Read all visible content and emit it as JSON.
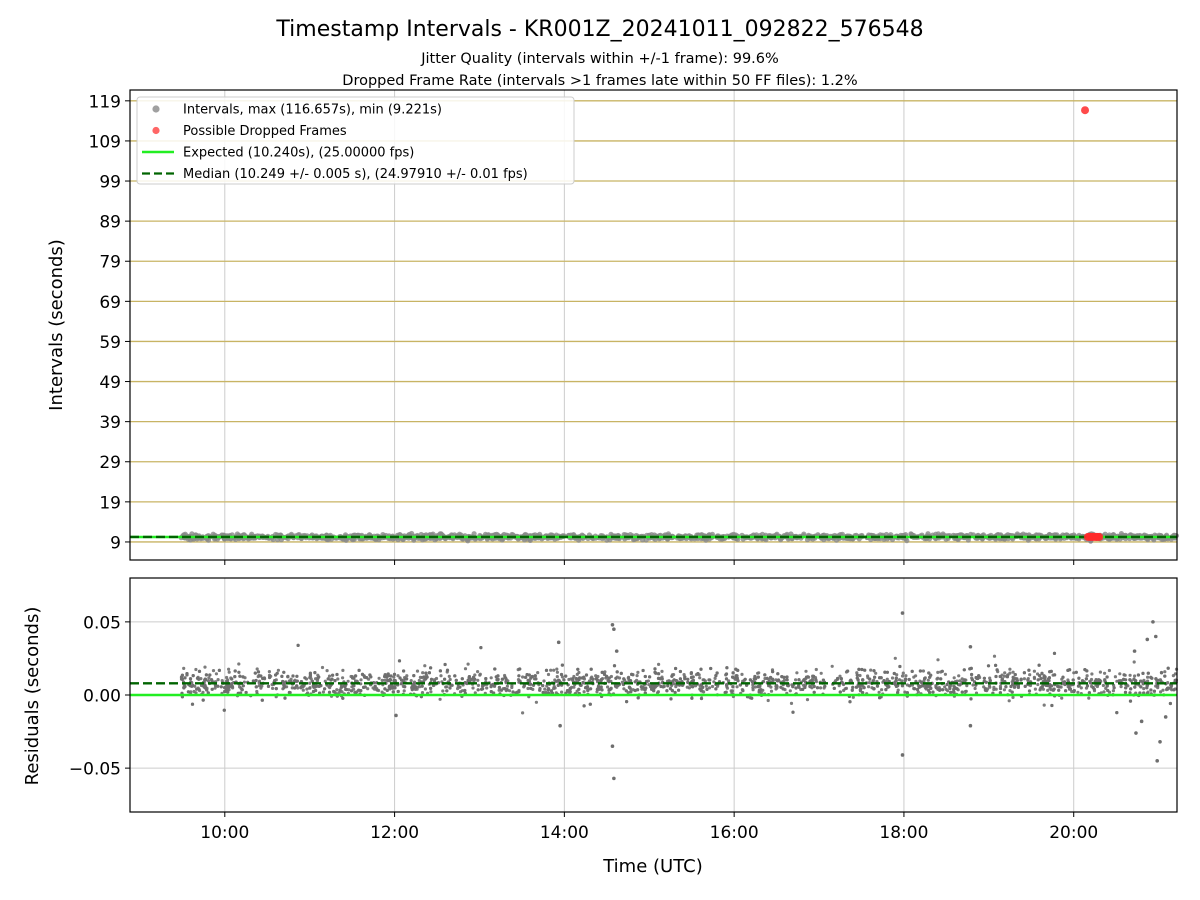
{
  "title": "Timestamp Intervals - KR001Z_20241011_092822_576548",
  "subtitle_1": "Jitter Quality (intervals within +/-1 frame): 99.6%",
  "subtitle_2": "Dropped Frame Rate (intervals >1 frames late within 50 FF files): 1.2%",
  "colors": {
    "scatter": "#808080",
    "dropped": "#ff2a2a",
    "expected": "#22ee22",
    "median": "#006400",
    "grid": "#cccccc",
    "h_grid": "#c8b464"
  },
  "chart_data": [
    {
      "type": "scatter",
      "panel": "intervals",
      "ylabel": "Intervals (seconds)",
      "xlabel": "",
      "x_range": [
        "08:53",
        "21:13"
      ],
      "x_ticks": [
        "10:00",
        "12:00",
        "14:00",
        "16:00",
        "18:00",
        "20:00"
      ],
      "x_tick_labels_visible": false,
      "ylim": [
        4.5,
        121.7
      ],
      "y_ticks": [
        9,
        19,
        29,
        39,
        49,
        59,
        69,
        79,
        89,
        99,
        109,
        119
      ],
      "legend_position": "top-left",
      "legend": [
        {
          "marker": "dot",
          "color": "#a0a0a0",
          "label": "Intervals, max (116.657s), min (9.221s)"
        },
        {
          "marker": "dot",
          "color": "#ff6666",
          "label": "Possible Dropped Frames"
        },
        {
          "marker": "solid-line",
          "color": "#22ee22",
          "label": "Expected (10.240s), (25.00000 fps)"
        },
        {
          "marker": "dashed-line",
          "color": "#006400",
          "label": "Median (10.249 +/- 0.005 s), (24.97910 +/- 0.01 fps)"
        }
      ],
      "series": [
        {
          "name": "Intervals, max (116.657s), min (9.221s)",
          "x_start": "09:29",
          "x_end": "21:13",
          "y_median": 10.249,
          "y_min": 9.221,
          "y_max": 116.657
        },
        {
          "name": "Possible Dropped Frames",
          "points": [
            {
              "x": "20:08",
              "y": 116.657
            },
            {
              "x": "20:10",
              "y": 10.26
            },
            {
              "x": "20:11",
              "y": 10.26
            },
            {
              "x": "20:12",
              "y": 10.26
            },
            {
              "x": "20:13",
              "y": 10.26
            },
            {
              "x": "20:14",
              "y": 10.26
            },
            {
              "x": "20:15",
              "y": 10.26
            },
            {
              "x": "20:16",
              "y": 10.26
            },
            {
              "x": "20:17",
              "y": 10.26
            },
            {
              "x": "20:18",
              "y": 10.26
            }
          ]
        },
        {
          "name": "Expected (10.240s), (25.00000 fps)",
          "y": 10.24
        },
        {
          "name": "Median (10.249 +/- 0.005 s), (24.97910 +/- 0.01 fps)",
          "y": 10.249
        }
      ],
      "grid": true
    },
    {
      "type": "scatter",
      "panel": "residuals",
      "xlabel": "Time (UTC)",
      "ylabel": "Residuals (seconds)",
      "x_range": [
        "08:53",
        "21:13"
      ],
      "x_ticks": [
        "10:00",
        "12:00",
        "14:00",
        "16:00",
        "18:00",
        "20:00"
      ],
      "ylim": [
        -0.08,
        0.08
      ],
      "y_ticks": [
        "0.05",
        "0.00",
        "−0.05"
      ],
      "y_tick_values": [
        0.05,
        0.0,
        -0.05
      ],
      "series": [
        {
          "name": "residuals",
          "x_start": "09:29",
          "x_end": "21:13",
          "center": 0.008,
          "spread": 0.005,
          "outliers": [
            {
              "x": "14:34",
              "y": 0.048
            },
            {
              "x": "14:35",
              "y": 0.045
            },
            {
              "x": "14:34",
              "y": -0.035
            },
            {
              "x": "14:35",
              "y": -0.057
            },
            {
              "x": "17:59",
              "y": 0.056
            },
            {
              "x": "17:59",
              "y": -0.041
            },
            {
              "x": "13:56",
              "y": 0.036
            },
            {
              "x": "13:57",
              "y": -0.021
            },
            {
              "x": "20:56",
              "y": 0.05
            },
            {
              "x": "20:58",
              "y": 0.04
            },
            {
              "x": "20:52",
              "y": 0.038
            },
            {
              "x": "20:44",
              "y": -0.026
            },
            {
              "x": "21:01",
              "y": -0.032
            },
            {
              "x": "20:59",
              "y": -0.045
            },
            {
              "x": "20:43",
              "y": 0.03
            },
            {
              "x": "18:47",
              "y": 0.033
            },
            {
              "x": "20:48",
              "y": -0.018
            },
            {
              "x": "21:05",
              "y": -0.015
            },
            {
              "x": "14:37",
              "y": 0.03
            },
            {
              "x": "12:01",
              "y": -0.014
            },
            {
              "x": "18:47",
              "y": -0.021
            }
          ]
        },
        {
          "name": "expected",
          "y": 0.0
        },
        {
          "name": "median",
          "y": 0.008
        }
      ],
      "grid": true
    }
  ]
}
